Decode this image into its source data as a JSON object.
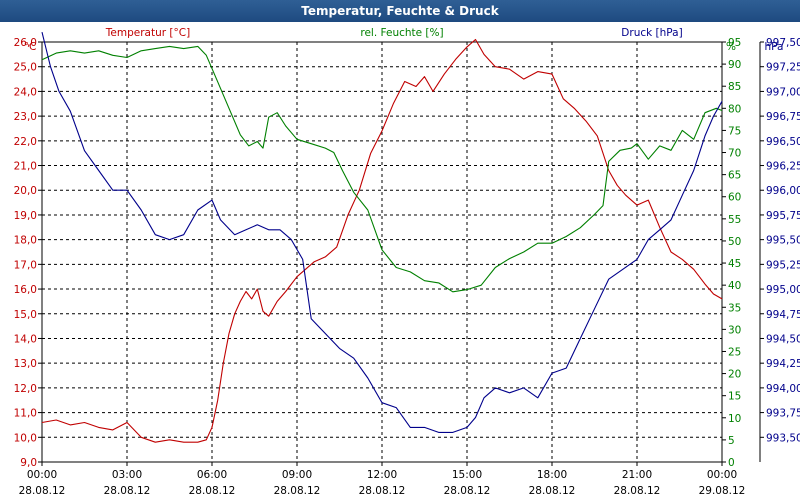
{
  "window": {
    "title": "Temperatur, Feuchte & Druck"
  },
  "chart_data": {
    "type": "line",
    "title": "Temperatur, Feuchte & Druck",
    "axes": {
      "temperature": {
        "label": "Temperatur [°C]",
        "unit": "°C",
        "min": 9.0,
        "max": 26.0,
        "color": "#c00000"
      },
      "humidity": {
        "label": "rel. Feuchte [%]",
        "unit": "%",
        "min": 0,
        "max": 95,
        "color": "#008000"
      },
      "pressure": {
        "label": "Druck [hPa]",
        "unit": "hPa",
        "min": 993.25,
        "max": 997.5,
        "color": "#00008b"
      }
    },
    "yticks_temperature": [
      "26,0",
      "25,0",
      "24,0",
      "23,0",
      "22,0",
      "21,0",
      "20,0",
      "19,0",
      "18,0",
      "17,0",
      "16,0",
      "15,0",
      "14,0",
      "13,0",
      "12,0",
      "11,0",
      "10,0",
      "9,0"
    ],
    "yticks_humidity": [
      "95",
      "90",
      "85",
      "80",
      "75",
      "70",
      "65",
      "60",
      "55",
      "50",
      "45",
      "40",
      "35",
      "30",
      "25",
      "20",
      "15",
      "10",
      "5",
      "0"
    ],
    "yticks_pressure": [
      "997,50",
      "997,25",
      "997,00",
      "996,75",
      "996,50",
      "996,25",
      "996,00",
      "995,75",
      "995,50",
      "995,25",
      "995,00",
      "994,75",
      "994,50",
      "994,25",
      "994,00",
      "993,75",
      "993,50"
    ],
    "x_hours_range": [
      0,
      24
    ],
    "xticks": [
      {
        "time": "00:00",
        "date": "28.08.12"
      },
      {
        "time": "03:00",
        "date": "28.08.12"
      },
      {
        "time": "06:00",
        "date": "28.08.12"
      },
      {
        "time": "09:00",
        "date": "28.08.12"
      },
      {
        "time": "12:00",
        "date": "28.08.12"
      },
      {
        "time": "15:00",
        "date": "28.08.12"
      },
      {
        "time": "18:00",
        "date": "28.08.12"
      },
      {
        "time": "21:00",
        "date": "28.08.12"
      },
      {
        "time": "00:00",
        "date": "29.08.12"
      }
    ],
    "series": [
      {
        "name": "Temperatur [°C]",
        "axis": "temperature",
        "color": "#c00000",
        "points": [
          [
            0,
            10.6
          ],
          [
            0.5,
            10.7
          ],
          [
            1.0,
            10.5
          ],
          [
            1.5,
            10.6
          ],
          [
            2.0,
            10.4
          ],
          [
            2.5,
            10.3
          ],
          [
            3.0,
            10.6
          ],
          [
            3.5,
            10.0
          ],
          [
            4.0,
            9.8
          ],
          [
            4.5,
            9.9
          ],
          [
            5.0,
            9.8
          ],
          [
            5.5,
            9.8
          ],
          [
            5.8,
            9.9
          ],
          [
            6.0,
            10.4
          ],
          [
            6.2,
            11.5
          ],
          [
            6.4,
            13.0
          ],
          [
            6.6,
            14.2
          ],
          [
            6.8,
            15.0
          ],
          [
            7.0,
            15.5
          ],
          [
            7.2,
            15.9
          ],
          [
            7.4,
            15.6
          ],
          [
            7.6,
            16.0
          ],
          [
            7.8,
            15.1
          ],
          [
            8.0,
            14.9
          ],
          [
            8.3,
            15.5
          ],
          [
            8.6,
            15.9
          ],
          [
            9.0,
            16.5
          ],
          [
            9.3,
            16.8
          ],
          [
            9.6,
            17.1
          ],
          [
            10.0,
            17.3
          ],
          [
            10.4,
            17.7
          ],
          [
            10.8,
            19.0
          ],
          [
            11.2,
            20.0
          ],
          [
            11.6,
            21.5
          ],
          [
            12.0,
            22.4
          ],
          [
            12.4,
            23.5
          ],
          [
            12.8,
            24.4
          ],
          [
            13.2,
            24.2
          ],
          [
            13.5,
            24.6
          ],
          [
            13.8,
            24.0
          ],
          [
            14.2,
            24.7
          ],
          [
            14.6,
            25.3
          ],
          [
            15.0,
            25.8
          ],
          [
            15.3,
            26.1
          ],
          [
            15.6,
            25.5
          ],
          [
            16.0,
            25.0
          ],
          [
            16.5,
            24.9
          ],
          [
            17.0,
            24.5
          ],
          [
            17.5,
            24.8
          ],
          [
            18.0,
            24.7
          ],
          [
            18.4,
            23.7
          ],
          [
            18.8,
            23.3
          ],
          [
            19.2,
            22.8
          ],
          [
            19.6,
            22.2
          ],
          [
            20.0,
            20.8
          ],
          [
            20.3,
            20.2
          ],
          [
            20.6,
            19.8
          ],
          [
            21.0,
            19.4
          ],
          [
            21.4,
            19.6
          ],
          [
            21.8,
            18.5
          ],
          [
            22.2,
            17.5
          ],
          [
            22.6,
            17.2
          ],
          [
            23.0,
            16.8
          ],
          [
            23.4,
            16.2
          ],
          [
            23.7,
            15.8
          ],
          [
            24.0,
            15.6
          ]
        ]
      },
      {
        "name": "rel. Feuchte [%]",
        "axis": "humidity",
        "color": "#008000",
        "points": [
          [
            0,
            91
          ],
          [
            0.5,
            92.5
          ],
          [
            1.0,
            93
          ],
          [
            1.5,
            92.5
          ],
          [
            2.0,
            93
          ],
          [
            2.5,
            92
          ],
          [
            3.0,
            91.5
          ],
          [
            3.5,
            93
          ],
          [
            4.0,
            93.5
          ],
          [
            4.5,
            94
          ],
          [
            5.0,
            93.5
          ],
          [
            5.5,
            94
          ],
          [
            5.8,
            92
          ],
          [
            6.2,
            86
          ],
          [
            6.6,
            80
          ],
          [
            7.0,
            74
          ],
          [
            7.3,
            71.5
          ],
          [
            7.6,
            72.5
          ],
          [
            7.8,
            71
          ],
          [
            8.0,
            78
          ],
          [
            8.3,
            79
          ],
          [
            8.6,
            76
          ],
          [
            9.0,
            73
          ],
          [
            9.5,
            72
          ],
          [
            10.0,
            71
          ],
          [
            10.3,
            70
          ],
          [
            10.6,
            66
          ],
          [
            11.0,
            61
          ],
          [
            11.5,
            57
          ],
          [
            12.0,
            48
          ],
          [
            12.5,
            44
          ],
          [
            13.0,
            43
          ],
          [
            13.5,
            41
          ],
          [
            14.0,
            40.5
          ],
          [
            14.5,
            38.5
          ],
          [
            15.0,
            39
          ],
          [
            15.5,
            40
          ],
          [
            16.0,
            44
          ],
          [
            16.5,
            46
          ],
          [
            17.0,
            47.5
          ],
          [
            17.5,
            49.5
          ],
          [
            18.0,
            49.5
          ],
          [
            18.5,
            51
          ],
          [
            19.0,
            53
          ],
          [
            19.5,
            56
          ],
          [
            19.8,
            58
          ],
          [
            20.0,
            68
          ],
          [
            20.4,
            70.5
          ],
          [
            20.8,
            71
          ],
          [
            21.0,
            72
          ],
          [
            21.4,
            68.5
          ],
          [
            21.8,
            71.5
          ],
          [
            22.2,
            70.5
          ],
          [
            22.6,
            75
          ],
          [
            23.0,
            73
          ],
          [
            23.4,
            79
          ],
          [
            23.8,
            80
          ],
          [
            24.0,
            79.5
          ]
        ]
      },
      {
        "name": "Druck [hPa]",
        "axis": "pressure",
        "color": "#00008b",
        "points": [
          [
            0,
            997.6
          ],
          [
            0.3,
            997.25
          ],
          [
            0.6,
            997.0
          ],
          [
            1.0,
            996.8
          ],
          [
            1.5,
            996.4
          ],
          [
            2.0,
            996.2
          ],
          [
            2.5,
            996.0
          ],
          [
            3.0,
            996.0
          ],
          [
            3.5,
            995.8
          ],
          [
            4.0,
            995.55
          ],
          [
            4.5,
            995.5
          ],
          [
            5.0,
            995.55
          ],
          [
            5.5,
            995.8
          ],
          [
            6.0,
            995.9
          ],
          [
            6.3,
            995.7
          ],
          [
            6.8,
            995.55
          ],
          [
            7.2,
            995.6
          ],
          [
            7.6,
            995.65
          ],
          [
            8.0,
            995.6
          ],
          [
            8.4,
            995.6
          ],
          [
            8.8,
            995.5
          ],
          [
            9.2,
            995.3
          ],
          [
            9.5,
            994.7
          ],
          [
            10.0,
            994.55
          ],
          [
            10.5,
            994.4
          ],
          [
            11.0,
            994.3
          ],
          [
            11.5,
            994.1
          ],
          [
            12.0,
            993.85
          ],
          [
            12.5,
            993.8
          ],
          [
            13.0,
            993.6
          ],
          [
            13.5,
            993.6
          ],
          [
            14.0,
            993.55
          ],
          [
            14.5,
            993.55
          ],
          [
            15.0,
            993.6
          ],
          [
            15.3,
            993.7
          ],
          [
            15.6,
            993.9
          ],
          [
            16.0,
            994.0
          ],
          [
            16.5,
            993.95
          ],
          [
            17.0,
            994.0
          ],
          [
            17.5,
            993.9
          ],
          [
            18.0,
            994.15
          ],
          [
            18.5,
            994.2
          ],
          [
            19.0,
            994.5
          ],
          [
            19.5,
            994.8
          ],
          [
            20.0,
            995.1
          ],
          [
            20.5,
            995.2
          ],
          [
            21.0,
            995.3
          ],
          [
            21.4,
            995.5
          ],
          [
            21.8,
            995.6
          ],
          [
            22.2,
            995.7
          ],
          [
            22.6,
            995.95
          ],
          [
            23.0,
            996.2
          ],
          [
            23.4,
            996.55
          ],
          [
            23.7,
            996.75
          ],
          [
            24.0,
            996.9
          ]
        ]
      }
    ]
  }
}
